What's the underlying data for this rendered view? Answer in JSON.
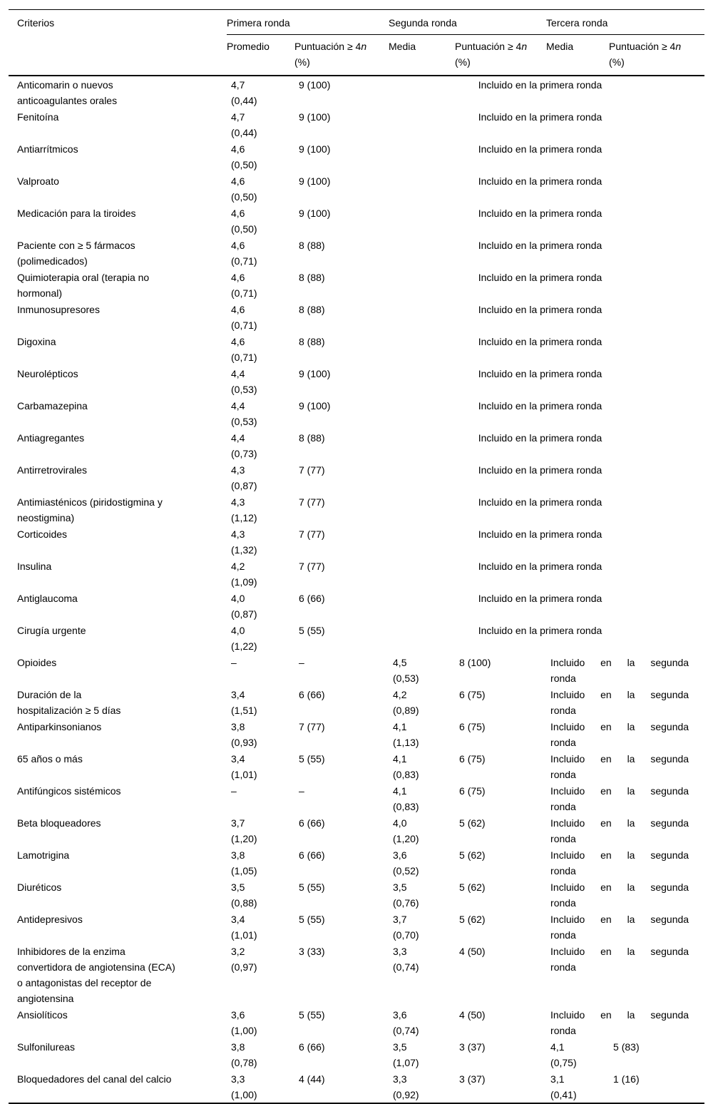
{
  "header": {
    "criterios": "Criterios",
    "groups": [
      {
        "label": "Primera ronda"
      },
      {
        "label": "Segunda ronda"
      },
      {
        "label": "Tercera ronda"
      }
    ],
    "sub_first": "Promedio",
    "sub_mean": "Media",
    "score_prefix": "Puntuación ≥ 4",
    "score_var": "n",
    "score_unit": "(%)"
  },
  "notes": {
    "primera": "Incluido en la primera ronda",
    "segunda": {
      "line1": "Incluido en la segunda",
      "line2": "ronda"
    }
  },
  "table": {
    "rows": [
      {
        "criterio": "Anticomarin o nuevos\nanticoagulantes orales",
        "cells": [
          "4,7\n(0,44)",
          "9 (100)"
        ],
        "note_type": "primera"
      },
      {
        "criterio": "Fenitoína",
        "cells": [
          "4,7\n(0,44)",
          "9 (100)"
        ],
        "note_type": "primera"
      },
      {
        "criterio": "Antiarrítmicos",
        "cells": [
          "4,6\n(0,50)",
          "9 (100)"
        ],
        "note_type": "primera"
      },
      {
        "criterio": "Valproato",
        "cells": [
          "4,6\n(0,50)",
          "9 (100)"
        ],
        "note_type": "primera"
      },
      {
        "criterio": "Medicación para la tiroides",
        "cells": [
          "4,6\n(0,50)",
          "9 (100)"
        ],
        "note_type": "primera"
      },
      {
        "criterio": "Paciente con ≥ 5 fármacos\n(polimedicados)",
        "cells": [
          "4,6\n(0,71)",
          "8 (88)"
        ],
        "note_type": "primera"
      },
      {
        "criterio": "Quimioterapia oral (terapia no\nhormonal)",
        "cells": [
          "4,6\n(0,71)",
          "8 (88)"
        ],
        "note_type": "primera"
      },
      {
        "criterio": "Inmunosupresores",
        "cells": [
          "4,6\n(0,71)",
          "8 (88)"
        ],
        "note_type": "primera"
      },
      {
        "criterio": "Digoxina",
        "cells": [
          "4,6\n(0,71)",
          "8 (88)"
        ],
        "note_type": "primera"
      },
      {
        "criterio": "Neurolépticos",
        "cells": [
          "4,4\n(0,53)",
          "9 (100)"
        ],
        "note_type": "primera"
      },
      {
        "criterio": "Carbamazepina",
        "cells": [
          "4,4\n(0,53)",
          "9 (100)"
        ],
        "note_type": "primera"
      },
      {
        "criterio": "Antiagregantes",
        "cells": [
          "4,4\n(0,73)",
          "8 (88)"
        ],
        "note_type": "primera"
      },
      {
        "criterio": "Antirretrovirales",
        "cells": [
          "4,3\n(0,87)",
          "7 (77)"
        ],
        "note_type": "primera"
      },
      {
        "criterio": "Antimiasténicos (piridostigmina y\nneostigmina)",
        "cells": [
          "4,3\n(1,12)",
          "7 (77)"
        ],
        "note_type": "primera"
      },
      {
        "criterio": "Corticoides",
        "cells": [
          "4,3\n(1,32)",
          "7 (77)"
        ],
        "note_type": "primera"
      },
      {
        "criterio": "Insulina",
        "cells": [
          "4,2\n(1,09)",
          "7 (77)"
        ],
        "note_type": "primera"
      },
      {
        "criterio": "Antiglaucoma",
        "cells": [
          "4,0\n(0,87)",
          "6 (66)"
        ],
        "note_type": "primera"
      },
      {
        "criterio": "Cirugía urgente",
        "cells": [
          "4,0\n(1,22)",
          "5 (55)"
        ],
        "note_type": "primera"
      },
      {
        "criterio": "Opioides",
        "cells": [
          "–",
          "–",
          "4,5\n(0,53)",
          "8 (100)"
        ],
        "note_type": "segunda"
      },
      {
        "criterio": "Duración de la\nhospitalización ≥ 5 días",
        "cells": [
          "3,4\n(1,51)",
          "6 (66)",
          "4,2\n(0,89)",
          "6 (75)"
        ],
        "note_type": "segunda"
      },
      {
        "criterio": "Antiparkinsonianos",
        "cells": [
          "3,8\n(0,93)",
          "7 (77)",
          "4,1\n(1,13)",
          "6 (75)"
        ],
        "note_type": "segunda"
      },
      {
        "criterio": "65 años o más",
        "cells": [
          "3,4\n(1,01)",
          "5 (55)",
          "4,1\n(0,83)",
          "6 (75)"
        ],
        "note_type": "segunda"
      },
      {
        "criterio": "Antifúngicos sistémicos",
        "cells": [
          "–",
          "–",
          "4,1\n(0,83)",
          "6 (75)"
        ],
        "note_type": "segunda"
      },
      {
        "criterio": "Beta bloqueadores",
        "cells": [
          "3,7\n(1,20)",
          "6 (66)",
          "4,0\n(1,20)",
          "5 (62)"
        ],
        "note_type": "segunda"
      },
      {
        "criterio": "Lamotrigina",
        "cells": [
          "3,8\n(1,05)",
          "6 (66)",
          "3,6\n(0,52)",
          "5 (62)"
        ],
        "note_type": "segunda"
      },
      {
        "criterio": "Diuréticos",
        "cells": [
          "3,5\n(0,88)",
          "5 (55)",
          "3,5\n(0,76)",
          "5 (62)"
        ],
        "note_type": "segunda"
      },
      {
        "criterio": "Antidepresivos",
        "cells": [
          "3,4\n(1,01)",
          "5 (55)",
          "3,7\n(0,70)",
          "5 (62)"
        ],
        "note_type": "segunda"
      },
      {
        "criterio": "Inhibidores de la enzima\nconvertidora de angiotensina (ECA)\no antagonistas del receptor de\nangiotensina",
        "cells": [
          "3,2\n(0,97)",
          "3 (33)",
          "3,3\n(0,74)",
          "4 (50)"
        ],
        "note_type": "segunda"
      },
      {
        "criterio": "Ansiolíticos",
        "cells": [
          "3,6\n(1,00)",
          "5 (55)",
          "3,6\n(0,74)",
          "4 (50)"
        ],
        "note_type": "segunda"
      },
      {
        "criterio": "Sulfonilureas",
        "cells": [
          "3,8\n(0,78)",
          "6 (66)",
          "3,5\n(1,07)",
          "3 (37)",
          "4,1\n(0,75)",
          "5 (83)"
        ],
        "note_type": "none"
      },
      {
        "criterio": "Bloquedadores del canal del calcio",
        "cells": [
          "3,3\n(1,00)",
          "4 (44)",
          "3,3\n(0,92)",
          "3 (37)",
          "3,1\n(0,41)",
          "1 (16)"
        ],
        "note_type": "none"
      }
    ]
  }
}
